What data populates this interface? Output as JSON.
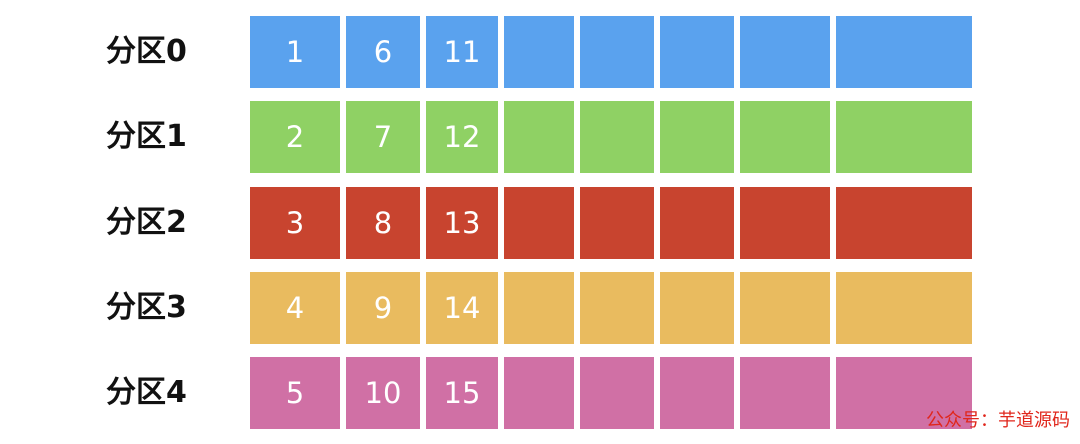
{
  "partitions": [
    {
      "label": "分区0",
      "color": "#5aa2ee",
      "values": [
        "1",
        "6",
        "11",
        "",
        "",
        "",
        "",
        ""
      ]
    },
    {
      "label": "分区1",
      "color": "#8fd164",
      "values": [
        "2",
        "7",
        "12",
        "",
        "",
        "",
        "",
        ""
      ]
    },
    {
      "label": "分区2",
      "color": "#c8442f",
      "values": [
        "3",
        "8",
        "13",
        "",
        "",
        "",
        "",
        ""
      ]
    },
    {
      "label": "分区3",
      "color": "#e9bb5f",
      "values": [
        "4",
        "9",
        "14",
        "",
        "",
        "",
        "",
        ""
      ]
    },
    {
      "label": "分区4",
      "color": "#d070a5",
      "values": [
        "5",
        "10",
        "15",
        "",
        "",
        "",
        "",
        ""
      ]
    }
  ],
  "watermark": "公众号：芋道源码"
}
